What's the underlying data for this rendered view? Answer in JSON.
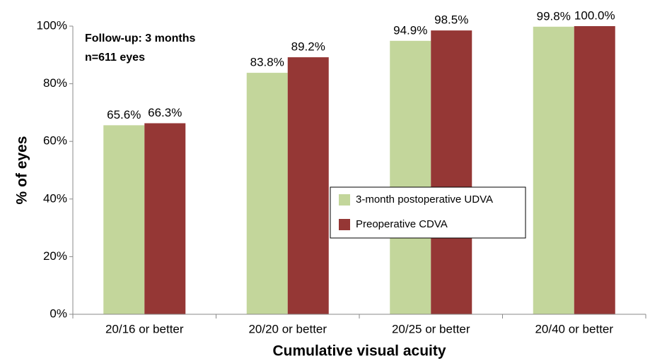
{
  "chart_data": {
    "type": "bar",
    "xlabel": "Cumulative visual acuity",
    "ylabel": "% of eyes",
    "annotations": [
      "Follow-up: 3 months",
      "n=611 eyes"
    ],
    "categories": [
      "20/16 or better",
      "20/20 or better",
      "20/25 or better",
      "20/40 or better"
    ],
    "series": [
      {
        "name": "3-month postoperative UDVA",
        "color": "#c3d69b",
        "values": [
          65.6,
          83.8,
          94.9,
          99.8
        ],
        "value_labels": [
          "65.6%",
          "83.8%",
          "94.9%",
          "99.8%"
        ]
      },
      {
        "name": "Preoperative CDVA",
        "color": "#953735",
        "values": [
          66.3,
          89.2,
          98.5,
          100.0
        ],
        "value_labels": [
          "66.3%",
          "89.2%",
          "98.5%",
          "100.0%"
        ]
      }
    ],
    "ylim": [
      0,
      100
    ],
    "yticks": [
      {
        "value": 0,
        "label": "0%"
      },
      {
        "value": 20,
        "label": "20%"
      },
      {
        "value": 40,
        "label": "40%"
      },
      {
        "value": 60,
        "label": "60%"
      },
      {
        "value": 80,
        "label": "80%"
      },
      {
        "value": 100,
        "label": "100%"
      }
    ],
    "grid": false,
    "legend": "center"
  }
}
